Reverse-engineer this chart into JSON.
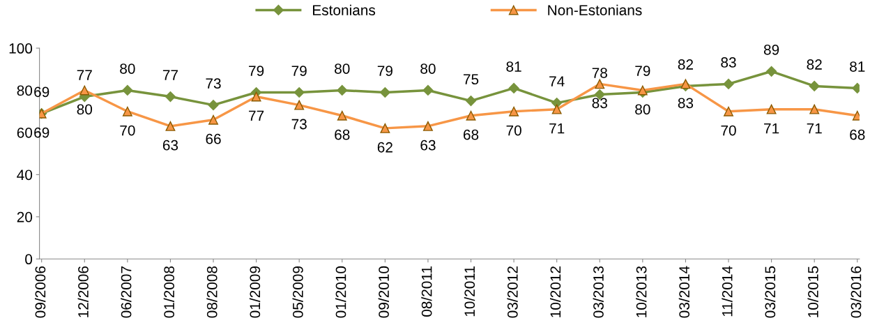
{
  "chart_data": {
    "type": "line",
    "categories": [
      "09/2006",
      "12/2006",
      "06/2007",
      "01/2008",
      "08/2008",
      "01/2009",
      "05/2009",
      "01/2010",
      "09/2010",
      "08/2011",
      "10/2011",
      "03/2012",
      "10/2012",
      "03/2013",
      "10/2013",
      "03/2014",
      "11/2014",
      "03/2015",
      "10/2015",
      "03/2016"
    ],
    "series": [
      {
        "name": "Estonians",
        "color": "#77933c",
        "marker": "diamond",
        "values": [
          69,
          77,
          80,
          77,
          73,
          79,
          79,
          80,
          79,
          80,
          75,
          81,
          74,
          78,
          79,
          82,
          83,
          89,
          82,
          81
        ]
      },
      {
        "name": "Non-Estonians",
        "color": "#f79646",
        "marker": "triangle",
        "values": [
          69,
          80,
          70,
          63,
          66,
          77,
          73,
          68,
          62,
          63,
          68,
          70,
          71,
          83,
          80,
          83,
          70,
          71,
          71,
          68
        ]
      }
    ],
    "ylim": [
      0,
      100
    ],
    "yticks": [
      0,
      20,
      40,
      60,
      80,
      100
    ],
    "data_labels": true,
    "grid": false,
    "legend": "top",
    "line_style": "solid"
  }
}
